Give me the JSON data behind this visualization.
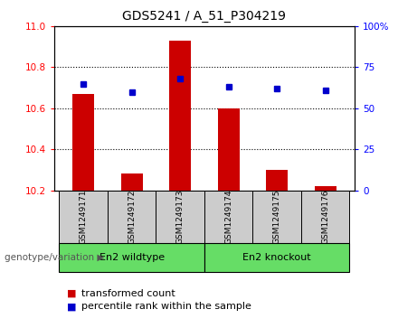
{
  "title": "GDS5241 / A_51_P304219",
  "categories": [
    "GSM1249171",
    "GSM1249172",
    "GSM1249173",
    "GSM1249174",
    "GSM1249175",
    "GSM1249176"
  ],
  "bar_values": [
    10.67,
    10.28,
    10.93,
    10.6,
    10.3,
    10.22
  ],
  "bar_baseline": 10.2,
  "percentile_values": [
    65,
    60,
    68,
    63,
    62,
    61
  ],
  "ylim_left": [
    10.2,
    11.0
  ],
  "ylim_right": [
    0,
    100
  ],
  "yticks_left": [
    10.2,
    10.4,
    10.6,
    10.8,
    11.0
  ],
  "yticks_right": [
    0,
    25,
    50,
    75,
    100
  ],
  "bar_color": "#cc0000",
  "dot_color": "#0000cc",
  "group1_label": "En2 wildtype",
  "group2_label": "En2 knockout",
  "group1_indices": [
    0,
    1,
    2
  ],
  "group2_indices": [
    3,
    4,
    5
  ],
  "group_color": "#66dd66",
  "genotype_label": "genotype/variation",
  "legend1_label": "transformed count",
  "legend2_label": "percentile rank within the sample",
  "background_color": "#ffffff",
  "plot_bg_color": "#ffffff",
  "label_area_color": "#cccccc",
  "bar_width": 0.45
}
